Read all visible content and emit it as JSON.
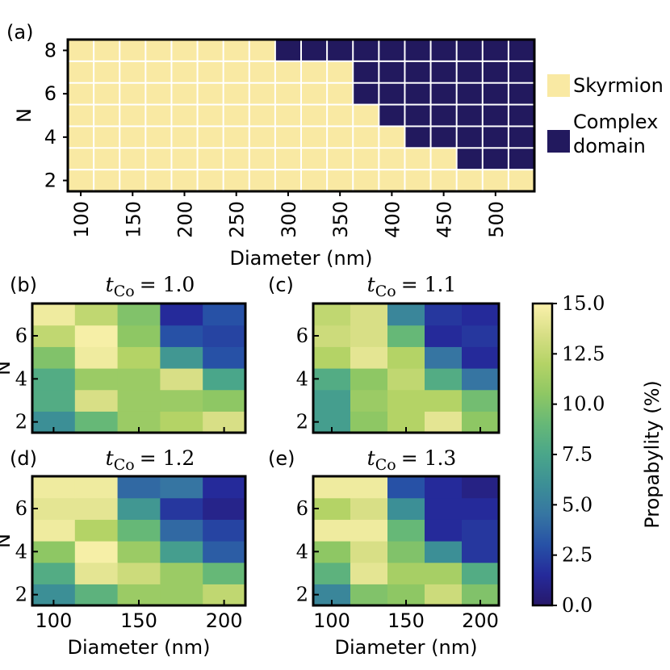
{
  "chart_data": [
    {
      "id": "a",
      "type": "heatmap",
      "panel_label": "(a)",
      "xlabel": "Diameter (nm)",
      "ylabel": "N",
      "x": [
        100,
        125,
        150,
        175,
        200,
        225,
        250,
        275,
        300,
        325,
        350,
        375,
        400,
        425,
        450,
        475,
        500,
        525
      ],
      "xtick_labels": [
        "100",
        "150",
        "200",
        "250",
        "300",
        "350",
        "400",
        "450",
        "500"
      ],
      "y": [
        2,
        3,
        4,
        5,
        6,
        7,
        8
      ],
      "ytick_labels": [
        "2",
        "4",
        "6",
        "8"
      ],
      "legend": [
        {
          "label_lines": [
            "Skyrmion"
          ],
          "color": "#f9e9a3"
        },
        {
          "label_lines": [
            "Complex",
            "domain"
          ],
          "color": "#22195e"
        }
      ],
      "values": [
        [
          0,
          0,
          0,
          0,
          0,
          0,
          0,
          0,
          0,
          0,
          0,
          0,
          0,
          0,
          0,
          0,
          0,
          0
        ],
        [
          0,
          0,
          0,
          0,
          0,
          0,
          0,
          0,
          0,
          0,
          0,
          0,
          0,
          0,
          0,
          1,
          1,
          1
        ],
        [
          0,
          0,
          0,
          0,
          0,
          0,
          0,
          0,
          0,
          0,
          0,
          0,
          0,
          1,
          1,
          1,
          1,
          1
        ],
        [
          0,
          0,
          0,
          0,
          0,
          0,
          0,
          0,
          0,
          0,
          0,
          0,
          1,
          1,
          1,
          1,
          1,
          1
        ],
        [
          0,
          0,
          0,
          0,
          0,
          0,
          0,
          0,
          0,
          0,
          0,
          1,
          1,
          1,
          1,
          1,
          1,
          1
        ],
        [
          0,
          0,
          0,
          0,
          0,
          0,
          0,
          0,
          0,
          0,
          0,
          1,
          1,
          1,
          1,
          1,
          1,
          1
        ],
        [
          0,
          0,
          0,
          0,
          0,
          0,
          0,
          0,
          1,
          1,
          1,
          1,
          1,
          1,
          1,
          1,
          1,
          1
        ]
      ]
    },
    {
      "id": "b",
      "type": "heatmap",
      "panel_label": "(b)",
      "title_var": "t",
      "title_sub": "Co",
      "title_value": "= 1.0",
      "x": [
        100,
        125,
        150,
        175,
        200
      ],
      "xtick_labels": [
        "100",
        "150",
        "200"
      ],
      "y": [
        2,
        3,
        4,
        5,
        6,
        7
      ],
      "ytick_labels": [
        "2",
        "4",
        "6"
      ],
      "ylabel": "N",
      "values": [
        [
          6,
          9,
          11,
          12,
          13.5
        ],
        [
          8,
          13.5,
          11,
          11,
          10.5
        ],
        [
          8,
          11,
          11,
          13.5,
          7.5
        ],
        [
          10,
          14.5,
          12,
          6.5,
          3
        ],
        [
          12.5,
          14.8,
          10.5,
          3,
          2.5
        ],
        [
          14.5,
          12.5,
          10,
          1.5,
          3
        ]
      ]
    },
    {
      "id": "c",
      "type": "heatmap",
      "panel_label": "(c)",
      "title_var": "t",
      "title_sub": "Co",
      "title_value": "= 1.1",
      "x": [
        100,
        125,
        150,
        175,
        200
      ],
      "xtick_labels": [
        "100",
        "150",
        "200"
      ],
      "y": [
        2,
        3,
        4,
        5,
        6,
        7
      ],
      "ytick_labels": [
        "2",
        "4",
        "6"
      ],
      "values": [
        [
          7,
          10.5,
          12,
          14,
          10.5
        ],
        [
          7,
          11,
          12,
          12,
          9.5
        ],
        [
          8,
          10.5,
          12.5,
          8,
          4.5
        ],
        [
          12,
          14,
          12,
          4.5,
          1.5
        ],
        [
          13,
          13.5,
          9,
          1.5,
          2
        ],
        [
          12.5,
          13.5,
          5.5,
          2,
          1.5
        ]
      ]
    },
    {
      "id": "d",
      "type": "heatmap",
      "panel_label": "(d)",
      "title_var": "t",
      "title_sub": "Co",
      "title_value": "= 1.2",
      "x": [
        100,
        125,
        150,
        175,
        200
      ],
      "xtick_labels": [
        "100",
        "150",
        "200"
      ],
      "y": [
        2,
        3,
        4,
        5,
        6,
        7
      ],
      "ytick_labels": [
        "2",
        "4",
        "6"
      ],
      "ylabel": "N",
      "xlabel": "Diameter (nm)",
      "values": [
        [
          6,
          8.5,
          11,
          11,
          12.5
        ],
        [
          8,
          14,
          13,
          11,
          9
        ],
        [
          10.5,
          14.8,
          11,
          7,
          3.5
        ],
        [
          14.5,
          12,
          9,
          4,
          2.5
        ],
        [
          14,
          14,
          6.5,
          2,
          1
        ],
        [
          14.5,
          14.5,
          4,
          4.5,
          1.5
        ]
      ]
    },
    {
      "id": "e",
      "type": "heatmap",
      "panel_label": "(e)",
      "title_var": "t",
      "title_sub": "Co",
      "title_value": "= 1.3",
      "x": [
        100,
        125,
        150,
        175,
        200
      ],
      "xtick_labels": [
        "100",
        "150",
        "200"
      ],
      "y": [
        2,
        3,
        4,
        5,
        6,
        7
      ],
      "ytick_labels": [
        "2",
        "4",
        "6"
      ],
      "xlabel": "Diameter (nm)",
      "values": [
        [
          5.5,
          10,
          10.5,
          13,
          10
        ],
        [
          8.5,
          14,
          11.5,
          11.5,
          8
        ],
        [
          10.5,
          13.5,
          10,
          6,
          2
        ],
        [
          14.5,
          14.5,
          9,
          1.5,
          2
        ],
        [
          12,
          13.5,
          6,
          1.5,
          1.5
        ],
        [
          14.5,
          14.5,
          3,
          1.5,
          0.8
        ]
      ]
    }
  ],
  "colorbar": {
    "label": "Propabylity (%)",
    "range": [
      0,
      15
    ],
    "ticks": [
      "0.0",
      "2.5",
      "5.0",
      "7.5",
      "10.0",
      "12.5",
      "15.0"
    ],
    "tick_values": [
      0,
      2.5,
      5,
      7.5,
      10,
      12.5,
      15
    ]
  }
}
